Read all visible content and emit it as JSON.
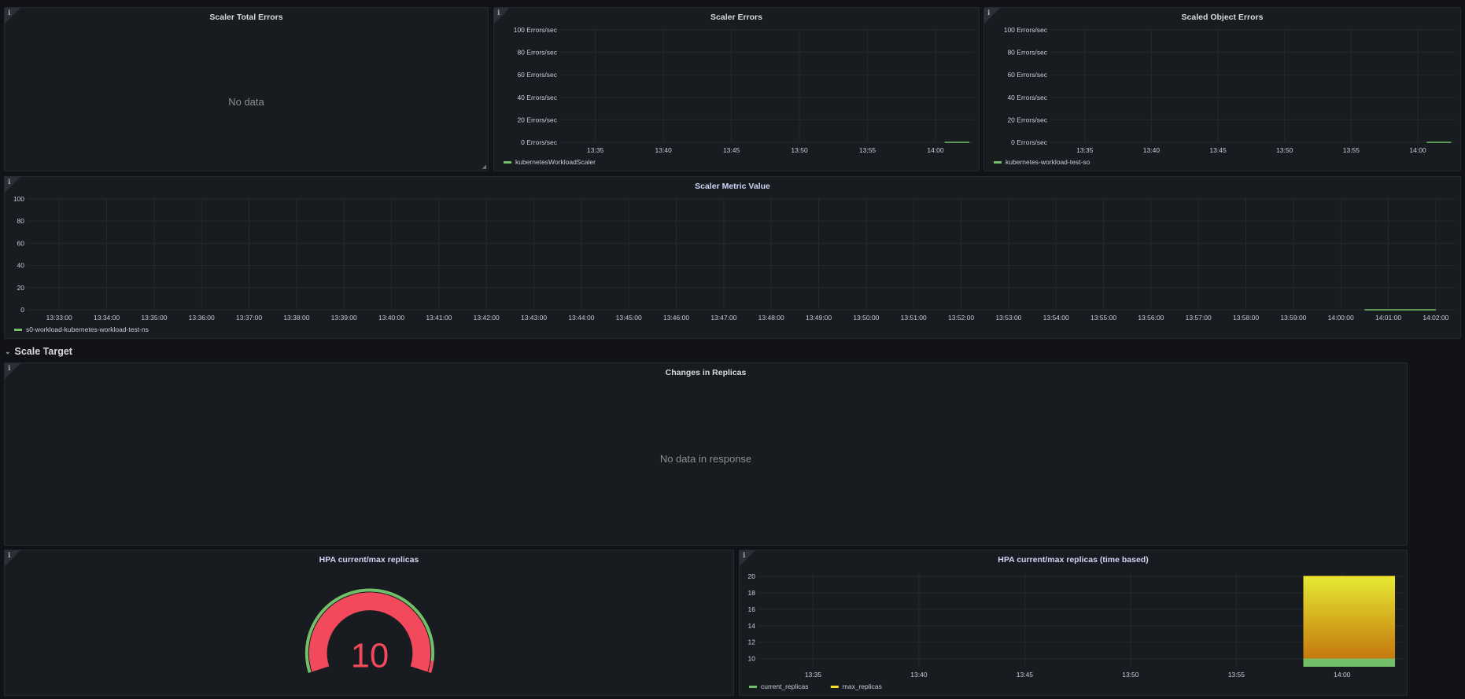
{
  "panels": {
    "scaler_total_errors": {
      "title": "Scaler Total Errors",
      "message": "No data"
    },
    "scaler_errors": {
      "title": "Scaler Errors"
    },
    "scaled_object_errors": {
      "title": "Scaled Object Errors"
    },
    "scaler_metric_value": {
      "title": "Scaler Metric Value"
    },
    "changes_in_replicas": {
      "title": "Changes in Replicas",
      "message": "No data in response"
    },
    "hpa_gauge": {
      "title": "HPA current/max replicas",
      "value": "10"
    },
    "hpa_time": {
      "title": "HPA current/max replicas (time based)"
    }
  },
  "row": {
    "title": "Scale Target",
    "collapse_icon": "chevron-down-icon"
  },
  "colors": {
    "green": "#73bf69",
    "yellow": "#fade2a",
    "red": "#f2495c",
    "panel_bg": "#181b1f",
    "page_bg": "#111217"
  },
  "chart_data": [
    {
      "id": "scaler_errors",
      "type": "line",
      "title": "Scaler Errors",
      "x_range": [
        "13:32:25",
        "14:02:50"
      ],
      "x_ticks": [
        "13:35",
        "13:40",
        "13:45",
        "13:50",
        "13:55",
        "14:00"
      ],
      "ylim": [
        0,
        100
      ],
      "y_ticks": [
        "0 Errors/sec",
        "20 Errors/sec",
        "40 Errors/sec",
        "60 Errors/sec",
        "80 Errors/sec",
        "100 Errors/sec"
      ],
      "y_tick_values": [
        0,
        20,
        40,
        60,
        80,
        100
      ],
      "grid": true,
      "legend": "bottom",
      "series": [
        {
          "name": "kubernetesWorkloadScaler",
          "color": "#73bf69",
          "x": [
            "14:00:40",
            "14:02:30"
          ],
          "y": [
            0,
            0
          ]
        }
      ]
    },
    {
      "id": "scaled_object_errors",
      "type": "line",
      "title": "Scaled Object Errors",
      "x_range": [
        "13:32:25",
        "14:02:50"
      ],
      "x_ticks": [
        "13:35",
        "13:40",
        "13:45",
        "13:50",
        "13:55",
        "14:00"
      ],
      "ylim": [
        0,
        100
      ],
      "y_ticks": [
        "0 Errors/sec",
        "20 Errors/sec",
        "40 Errors/sec",
        "60 Errors/sec",
        "80 Errors/sec",
        "100 Errors/sec"
      ],
      "y_tick_values": [
        0,
        20,
        40,
        60,
        80,
        100
      ],
      "grid": true,
      "legend": "bottom",
      "series": [
        {
          "name": "kubernetes-workload-test-so",
          "color": "#73bf69",
          "x": [
            "14:00:40",
            "14:02:30"
          ],
          "y": [
            0,
            0
          ]
        }
      ]
    },
    {
      "id": "scaler_metric_value",
      "type": "line",
      "title": "Scaler Metric Value",
      "x_range": [
        "13:32:20",
        "14:02:25"
      ],
      "x_ticks": [
        "13:33:00",
        "13:34:00",
        "13:35:00",
        "13:36:00",
        "13:37:00",
        "13:38:00",
        "13:39:00",
        "13:40:00",
        "13:41:00",
        "13:42:00",
        "13:43:00",
        "13:44:00",
        "13:45:00",
        "13:46:00",
        "13:47:00",
        "13:48:00",
        "13:49:00",
        "13:50:00",
        "13:51:00",
        "13:52:00",
        "13:53:00",
        "13:54:00",
        "13:55:00",
        "13:56:00",
        "13:57:00",
        "13:58:00",
        "13:59:00",
        "14:00:00",
        "14:01:00",
        "14:02:00"
      ],
      "ylim": [
        0,
        100
      ],
      "y_ticks": [
        "0",
        "20",
        "40",
        "60",
        "80",
        "100"
      ],
      "y_tick_values": [
        0,
        20,
        40,
        60,
        80,
        100
      ],
      "grid": true,
      "legend": "bottom",
      "series": [
        {
          "name": "s0-workload-kubernetes-workload-test-ns",
          "color": "#73bf69",
          "x": [
            "14:00:30",
            "14:02:00"
          ],
          "y": [
            0,
            0
          ]
        }
      ]
    },
    {
      "id": "hpa_time",
      "type": "area",
      "title": "HPA current/max replicas (time based)",
      "x_range": [
        "13:32:25",
        "14:02:50"
      ],
      "x_ticks": [
        "13:35",
        "13:40",
        "13:45",
        "13:50",
        "13:55",
        "14:00"
      ],
      "ylim": [
        9,
        20.5
      ],
      "y_ticks": [
        "10",
        "12",
        "14",
        "16",
        "18",
        "20"
      ],
      "y_tick_values": [
        10,
        12,
        14,
        16,
        18,
        20
      ],
      "grid": true,
      "legend": "bottom",
      "series": [
        {
          "name": "current_replicas",
          "color": "#73bf69",
          "x": [
            "13:58:10",
            "14:02:30"
          ],
          "y": [
            10,
            10
          ]
        },
        {
          "name": "max_replicas",
          "color": "#fade2a",
          "x": [
            "13:58:10",
            "14:02:30"
          ],
          "y": [
            20,
            20
          ]
        }
      ]
    },
    {
      "id": "hpa_gauge",
      "type": "gauge",
      "title": "HPA current/max replicas",
      "value": 10,
      "min": 0,
      "max": 10,
      "thresholds": [
        {
          "value": 0,
          "color": "#73bf69"
        },
        {
          "value": 9.5,
          "color": "#f2495c"
        }
      ]
    }
  ]
}
